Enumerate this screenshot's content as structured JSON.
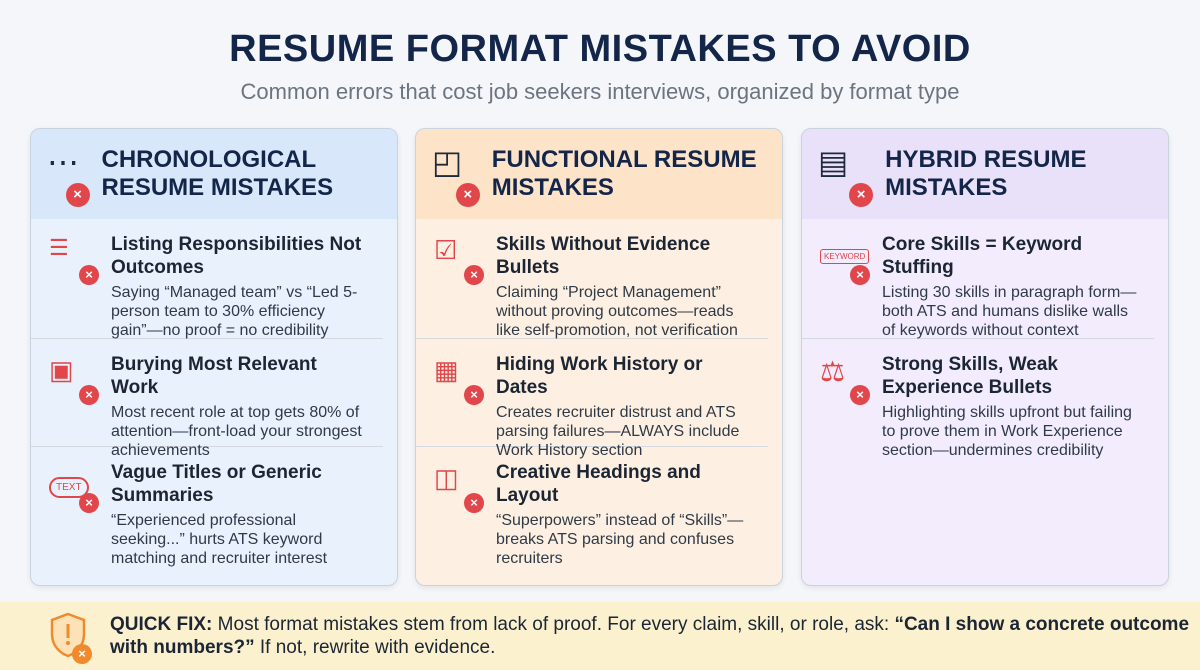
{
  "title": "RESUME FORMAT MISTAKES TO AVOID",
  "subtitle": "Common errors that cost job seekers interviews, organized by format type",
  "colors": {
    "accent_red": "#e0464a",
    "title": "#13264a",
    "footer_bg": "#fcf1cf",
    "footer_icon": "#f08a2c"
  },
  "cards": [
    {
      "title": "CHRONOLOGICAL RESUME MISTAKES",
      "icon": "timeline-icon",
      "header_bg": "#d8e7f9",
      "body_bg": "#e8f1fc",
      "items": [
        {
          "icon": "checklist-x-icon",
          "title": "Listing Responsibilities Not Outcomes",
          "text": "Saying “Managed team” vs “Led 5-person team to 30% efficiency gain”—no proof = no credibility"
        },
        {
          "icon": "briefcase-icon",
          "title": "Burying Most Relevant Work",
          "text": "Most recent role at top gets 80% of attention—front-load your strongest achievements"
        },
        {
          "icon": "text-cloud-icon",
          "title": "Vague Titles or Generic Summaries",
          "text": "“Experienced professional seeking...” hurts ATS keyword matching and recruiter interest"
        }
      ]
    },
    {
      "title": "FUNCTIONAL RESUME MISTAKES",
      "icon": "shapes-icon",
      "header_bg": "#fde3c8",
      "body_bg": "#fdf0e2",
      "items": [
        {
          "icon": "checklist-icon",
          "title": "Skills Without Evidence Bullets",
          "text": "Claiming “Project Management” without proving outcomes—reads like self-promotion, not verification"
        },
        {
          "icon": "calendar-icon",
          "title": "Hiding Work History or Dates",
          "text": "Creates recruiter distrust and ATS parsing failures—ALWAYS include Work History section"
        },
        {
          "icon": "layout-icon",
          "title": "Creative Headings and Layout",
          "text": "“Superpowers” instead of “Skills”—breaks ATS parsing and confuses recruiters"
        }
      ]
    },
    {
      "title": "HYBRID RESUME MISTAKES",
      "icon": "document-icon",
      "header_bg": "#e9e0f9",
      "body_bg": "#f2ecfc",
      "items": [
        {
          "icon": "keyword-icon",
          "icon_text": "KEYWORD",
          "title": "Core Skills = Keyword Stuffing",
          "text": "Listing 30 skills in paragraph form—both ATS and humans dislike walls of keywords without context"
        },
        {
          "icon": "scale-icon",
          "title": "Strong Skills, Weak Experience Bullets",
          "text": "Highlighting skills upfront but failing to prove them in Work Experience section—undermines credibility"
        }
      ]
    }
  ],
  "footer": {
    "icon": "shield-warning-icon",
    "label": "QUICK FIX:",
    "text": " Most format mistakes stem from lack of proof. For every claim, skill, or role, ask: ",
    "question": "“Can I show a concrete outcome with numbers?”",
    "tail": " If not, rewrite with evidence."
  },
  "badge": "×",
  "text_icon_label": "TEXT"
}
